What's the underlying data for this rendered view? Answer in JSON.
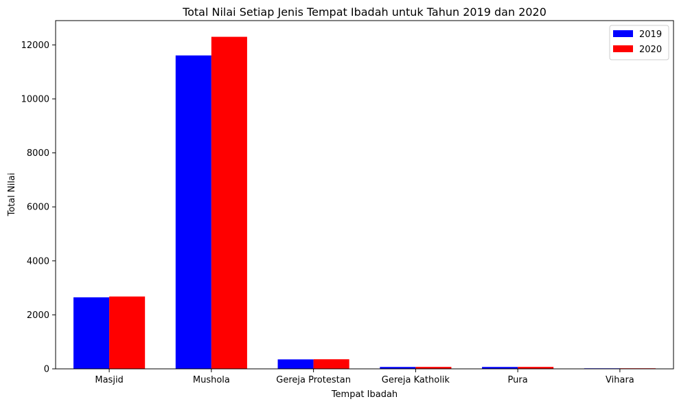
{
  "chart_data": {
    "type": "bar",
    "title": "Total Nilai Setiap Jenis Tempat Ibadah untuk Tahun 2019 dan 2020",
    "xlabel": "Tempat Ibadah",
    "ylabel": "Total Nilai",
    "categories": [
      "Masjid",
      "Mushola",
      "Gereja Protestan",
      "Gereja Katholik",
      "Pura",
      "Vihara"
    ],
    "series": [
      {
        "name": "2019",
        "color": "#0000ff",
        "values": [
          2650,
          11610,
          350,
          70,
          70,
          20
        ]
      },
      {
        "name": "2020",
        "color": "#ff0000",
        "values": [
          2680,
          12300,
          355,
          72,
          72,
          21
        ]
      }
    ],
    "ylim": [
      0,
      12900
    ],
    "yticks": [
      0,
      2000,
      4000,
      6000,
      8000,
      10000,
      12000
    ],
    "ytick_labels": [
      "0",
      "2000",
      "4000",
      "6000",
      "8000",
      "10000",
      "12000"
    ],
    "grid": false,
    "legend_position": "top-right"
  }
}
